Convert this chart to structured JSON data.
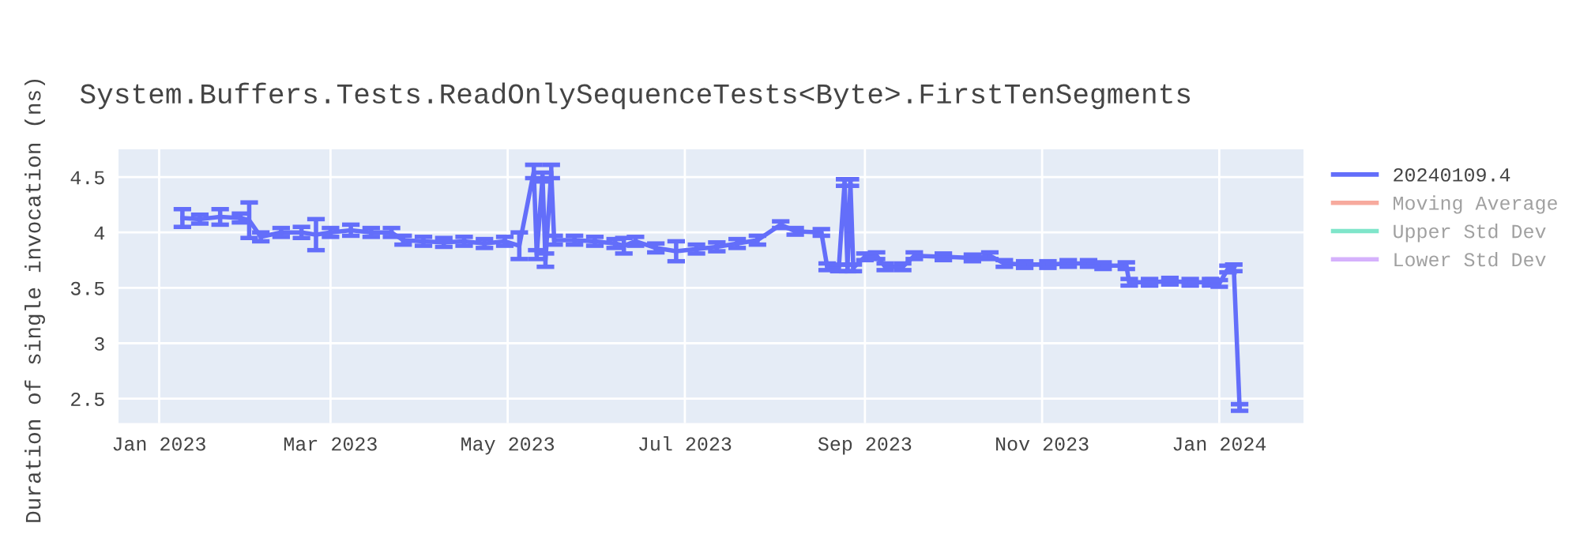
{
  "chart_data": {
    "type": "line",
    "title": "System.Buffers.Tests.ReadOnlySequenceTests<Byte>.FirstTenSegments",
    "ylabel": "Duration of single invocation (ns)",
    "xlim": [
      "2022-12-18",
      "2024-01-30"
    ],
    "ylim": [
      2.28,
      4.75
    ],
    "xticks": [
      {
        "value": "2023-01-01",
        "label": "Jan 2023"
      },
      {
        "value": "2023-03-01",
        "label": "Mar 2023"
      },
      {
        "value": "2023-05-01",
        "label": "May 2023"
      },
      {
        "value": "2023-07-01",
        "label": "Jul 2023"
      },
      {
        "value": "2023-09-01",
        "label": "Sep 2023"
      },
      {
        "value": "2023-11-01",
        "label": "Nov 2023"
      },
      {
        "value": "2024-01-01",
        "label": "Jan 2024"
      }
    ],
    "yticks": [
      2.5,
      3,
      3.5,
      4,
      4.5
    ],
    "grid": true,
    "legend": "right",
    "series": [
      {
        "name": "20240109.4",
        "color": "#636efa",
        "x": [
          "2023-01-09",
          "2023-01-15",
          "2023-01-22",
          "2023-01-29",
          "2023-02-01",
          "2023-02-05",
          "2023-02-12",
          "2023-02-19",
          "2023-02-24",
          "2023-03-01",
          "2023-03-08",
          "2023-03-15",
          "2023-03-22",
          "2023-03-26",
          "2023-04-02",
          "2023-04-09",
          "2023-04-16",
          "2023-04-23",
          "2023-04-30",
          "2023-05-05",
          "2023-05-10",
          "2023-05-11",
          "2023-05-13",
          "2023-05-14",
          "2023-05-16",
          "2023-05-17",
          "2023-05-24",
          "2023-05-31",
          "2023-06-07",
          "2023-06-10",
          "2023-06-14",
          "2023-06-21",
          "2023-06-28",
          "2023-07-05",
          "2023-07-12",
          "2023-07-19",
          "2023-07-26",
          "2023-08-03",
          "2023-08-08",
          "2023-08-17",
          "2023-08-19",
          "2023-08-23",
          "2023-08-25",
          "2023-08-26",
          "2023-08-27",
          "2023-08-28",
          "2023-09-01",
          "2023-09-05",
          "2023-09-08",
          "2023-09-14",
          "2023-09-18",
          "2023-09-28",
          "2023-10-08",
          "2023-10-14",
          "2023-10-19",
          "2023-10-26",
          "2023-11-03",
          "2023-11-10",
          "2023-11-17",
          "2023-11-22",
          "2023-11-30",
          "2023-12-01",
          "2023-12-08",
          "2023-12-15",
          "2023-12-22",
          "2023-12-29",
          "2024-01-01",
          "2024-01-04",
          "2024-01-06",
          "2024-01-08"
        ],
        "values": [
          4.13,
          4.12,
          4.14,
          4.13,
          4.11,
          3.96,
          4.0,
          4.0,
          3.98,
          4.0,
          4.02,
          4.0,
          4.0,
          3.93,
          3.92,
          3.91,
          3.92,
          3.9,
          3.92,
          3.88,
          4.55,
          3.8,
          4.5,
          3.75,
          4.55,
          3.93,
          3.93,
          3.92,
          3.9,
          3.88,
          3.92,
          3.86,
          3.83,
          3.85,
          3.87,
          3.9,
          3.93,
          4.07,
          4.01,
          4.0,
          3.69,
          3.68,
          4.45,
          3.68,
          4.45,
          3.68,
          3.78,
          3.79,
          3.69,
          3.69,
          3.79,
          3.78,
          3.77,
          3.79,
          3.72,
          3.71,
          3.71,
          3.72,
          3.72,
          3.7,
          3.7,
          3.55,
          3.55,
          3.56,
          3.55,
          3.55,
          3.54,
          3.67,
          3.68,
          2.42
        ],
        "errors": [
          0.08,
          0.04,
          0.07,
          0.04,
          0.16,
          0.04,
          0.04,
          0.05,
          0.14,
          0.04,
          0.05,
          0.04,
          0.04,
          0.04,
          0.04,
          0.04,
          0.04,
          0.04,
          0.04,
          0.12,
          0.06,
          0.04,
          0.04,
          0.06,
          0.06,
          0.04,
          0.04,
          0.04,
          0.04,
          0.07,
          0.04,
          0.04,
          0.09,
          0.04,
          0.04,
          0.04,
          0.04,
          0.03,
          0.03,
          0.03,
          0.03,
          0.03,
          0.03,
          0.03,
          0.03,
          0.03,
          0.03,
          0.03,
          0.03,
          0.03,
          0.03,
          0.03,
          0.03,
          0.03,
          0.03,
          0.03,
          0.03,
          0.03,
          0.03,
          0.03,
          0.03,
          0.03,
          0.03,
          0.03,
          0.03,
          0.03,
          0.03,
          0.03,
          0.03,
          0.03
        ]
      },
      {
        "name": "Moving Average",
        "color": "#ef553b"
      },
      {
        "name": "Upper Std Dev",
        "color": "#00cc96"
      },
      {
        "name": "Lower Std Dev",
        "color": "#ab63fa"
      }
    ]
  }
}
